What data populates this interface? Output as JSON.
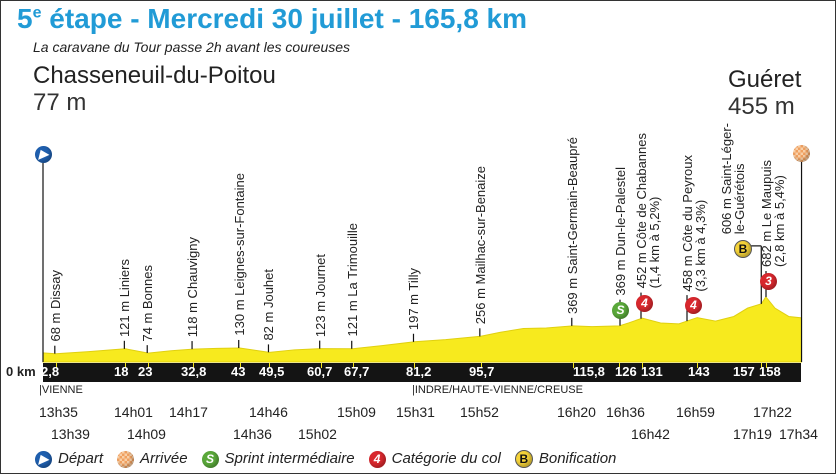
{
  "title": {
    "stage_number": "5",
    "stage_suffix": "e",
    "rest": " étape - Mercredi 30 juillet - 165,8 km"
  },
  "subtitle": "La caravane du Tour passe 2h avant les coureuses",
  "start": {
    "city": "Chasseneuil-du-Poitou",
    "altitude": "77 m",
    "km_label": "0 km"
  },
  "finish": {
    "city": "Guéret",
    "altitude": "455 m"
  },
  "colors": {
    "title": "#219bd6",
    "profile": "#f7ea1e",
    "bar": "#141414"
  },
  "profile": {
    "km": [
      0,
      2.8,
      10,
      18,
      23,
      28,
      32.8,
      38,
      43,
      49.5,
      55,
      60.7,
      67.7,
      75,
      81.2,
      88,
      95.7,
      100,
      105,
      110,
      115.8,
      120,
      126,
      128,
      131,
      135,
      139,
      143,
      147,
      151,
      154,
      157,
      158,
      160,
      163,
      165.8
    ],
    "alt": [
      77,
      68,
      90,
      121,
      74,
      100,
      118,
      125,
      130,
      82,
      110,
      123,
      121,
      160,
      197,
      220,
      256,
      300,
      340,
      345,
      369,
      360,
      369,
      400,
      452,
      400,
      390,
      458,
      420,
      470,
      560,
      606,
      682,
      560,
      470,
      455
    ]
  },
  "points": [
    {
      "km": 2.8,
      "km_label": "2,8",
      "label": [
        "68 m Dissay"
      ]
    },
    {
      "km": 18,
      "km_label": "18",
      "label": [
        "121 m Liniers"
      ]
    },
    {
      "km": 23,
      "km_label": "23",
      "label": [
        "74 m Bonnes"
      ]
    },
    {
      "km": 32.8,
      "km_label": "32,8",
      "label": [
        "118 m Chauvigny"
      ]
    },
    {
      "km": 43,
      "km_label": "43",
      "label": [
        "130 m Leignes-sur-Fontaine"
      ]
    },
    {
      "km": 49.5,
      "km_label": "49,5",
      "label": [
        "82 m Jouhet"
      ]
    },
    {
      "km": 60.7,
      "km_label": "60,7",
      "label": [
        "123 m Journet"
      ]
    },
    {
      "km": 67.7,
      "km_label": "67,7",
      "label": [
        "121 m La Trimouille"
      ]
    },
    {
      "km": 81.2,
      "km_label": "81,2",
      "label": [
        "197 m Tilly"
      ]
    },
    {
      "km": 95.7,
      "km_label": "95,7",
      "label": [
        "256 m Mailhac-sur-Benaize"
      ]
    },
    {
      "km": 115.8,
      "km_label": "115,8",
      "label": [
        "369 m Saint-Germain-Beaupré"
      ]
    },
    {
      "km": 126,
      "km_label": "126",
      "label": [
        "369 m Dun-le-Palestel"
      ],
      "icon": "S"
    },
    {
      "km": 131,
      "km_label": "131",
      "label": [
        "452 m Côte de Chabannes",
        "(1,4 km à 5,2%)"
      ],
      "icon": "4"
    },
    {
      "km": 143,
      "km_label": "143",
      "label": [
        "458 m Côte du Peyroux",
        "(3,3 km à 4,3%)"
      ],
      "icon": "4"
    },
    {
      "km": 157,
      "km_label": "157",
      "label": [
        "606 m Saint-Léger-",
        "le-Guérétois"
      ],
      "icon": "B"
    },
    {
      "km": 158,
      "km_label": "158",
      "label": [
        "682 m Le Maupuis",
        "(2,8 km à 5,4%)"
      ],
      "icon": "3"
    }
  ],
  "regions": [
    "|VIENNE",
    "|INDRE/HAUTE-VIENNE/CREUSE"
  ],
  "times_top": [
    "13h35",
    "14h01",
    "14h17",
    "14h46",
    "15h09",
    "15h31",
    "15h52",
    "16h20",
    "16h36",
    "16h59",
    "17h22"
  ],
  "times_bottom": [
    "13h39",
    "14h09",
    "14h36",
    "15h02",
    "16h42",
    "17h19",
    "17h34"
  ],
  "legend": {
    "depart": "Départ",
    "arrivee": "Arrivée",
    "sprint": "Sprint intermédiaire",
    "sprint_icon": "S",
    "col": "Catégorie du col",
    "col_icon": "4",
    "bonus": "Bonification",
    "bonus_icon": "B"
  }
}
